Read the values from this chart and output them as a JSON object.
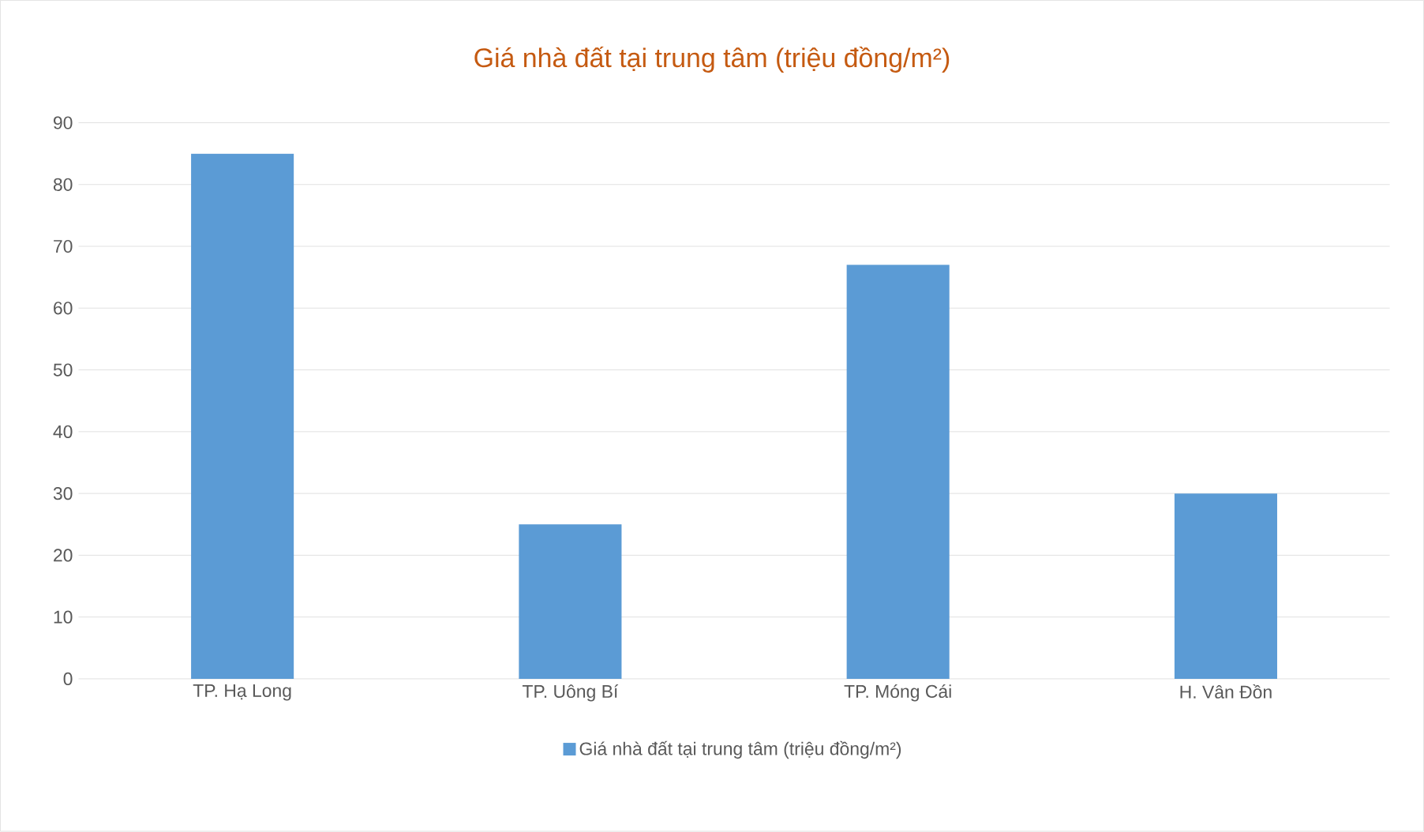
{
  "chart_data": {
    "type": "bar",
    "title": "Giá nhà đất tại trung tâm (triệu đồng/m²)",
    "categories": [
      "TP. Hạ Long",
      "TP. Uông Bí",
      "TP. Móng Cái",
      "H. Vân Đồn"
    ],
    "series": [
      {
        "name": "Giá nhà đất tại trung tâm (triệu đồng/m²)",
        "color": "#5b9bd5",
        "values": [
          85,
          25,
          67,
          30
        ]
      }
    ],
    "ylim": [
      0,
      90
    ],
    "yticks": [
      0,
      10,
      20,
      30,
      40,
      50,
      60,
      70,
      80,
      90
    ],
    "grid": "y",
    "legend": "bottom"
  }
}
